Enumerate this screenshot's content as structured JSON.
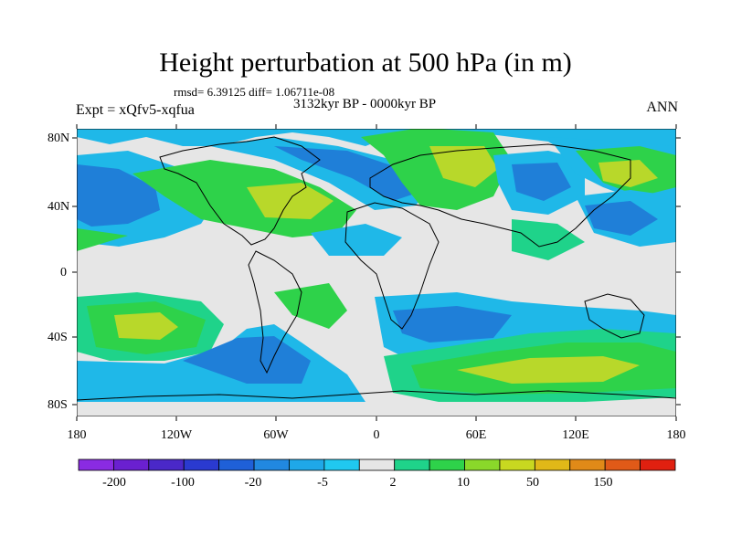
{
  "title": "Height perturbation at 500 hPa (in m)",
  "stats": "rmsd= 6.39125 diff= 1.06711e-08",
  "experiment": "Expt = xQfv5-xqfua",
  "period": "3132kyr BP - 0000kyr BP",
  "season": "ANN",
  "lat_ticks": [
    "80N",
    "40N",
    "0",
    "40S",
    "80S"
  ],
  "lon_ticks": [
    "180",
    "120W",
    "60W",
    "0",
    "60E",
    "120E",
    "180"
  ],
  "colorbar": {
    "labels": [
      "-200",
      "-100",
      "-20",
      "-5",
      "2",
      "10",
      "50",
      "150"
    ],
    "colors": [
      "#8a2be2",
      "#6a20d0",
      "#4a28c8",
      "#2a3ad0",
      "#1f60d8",
      "#2188e0",
      "#1fa8e8",
      "#20c8f0",
      "#e6e6e6",
      "#1fd38a",
      "#2ed24a",
      "#8ad82a",
      "#c8d820",
      "#e0b818",
      "#e08a18",
      "#e05a18",
      "#e02010"
    ]
  },
  "colors": {
    "neutral": "#e6e6e6",
    "light_blue": "#1fb8e8",
    "mid_blue": "#1f7fd8",
    "teal_green": "#1fd38a",
    "green": "#2ed24a",
    "yellow_green": "#b8d82a"
  }
}
